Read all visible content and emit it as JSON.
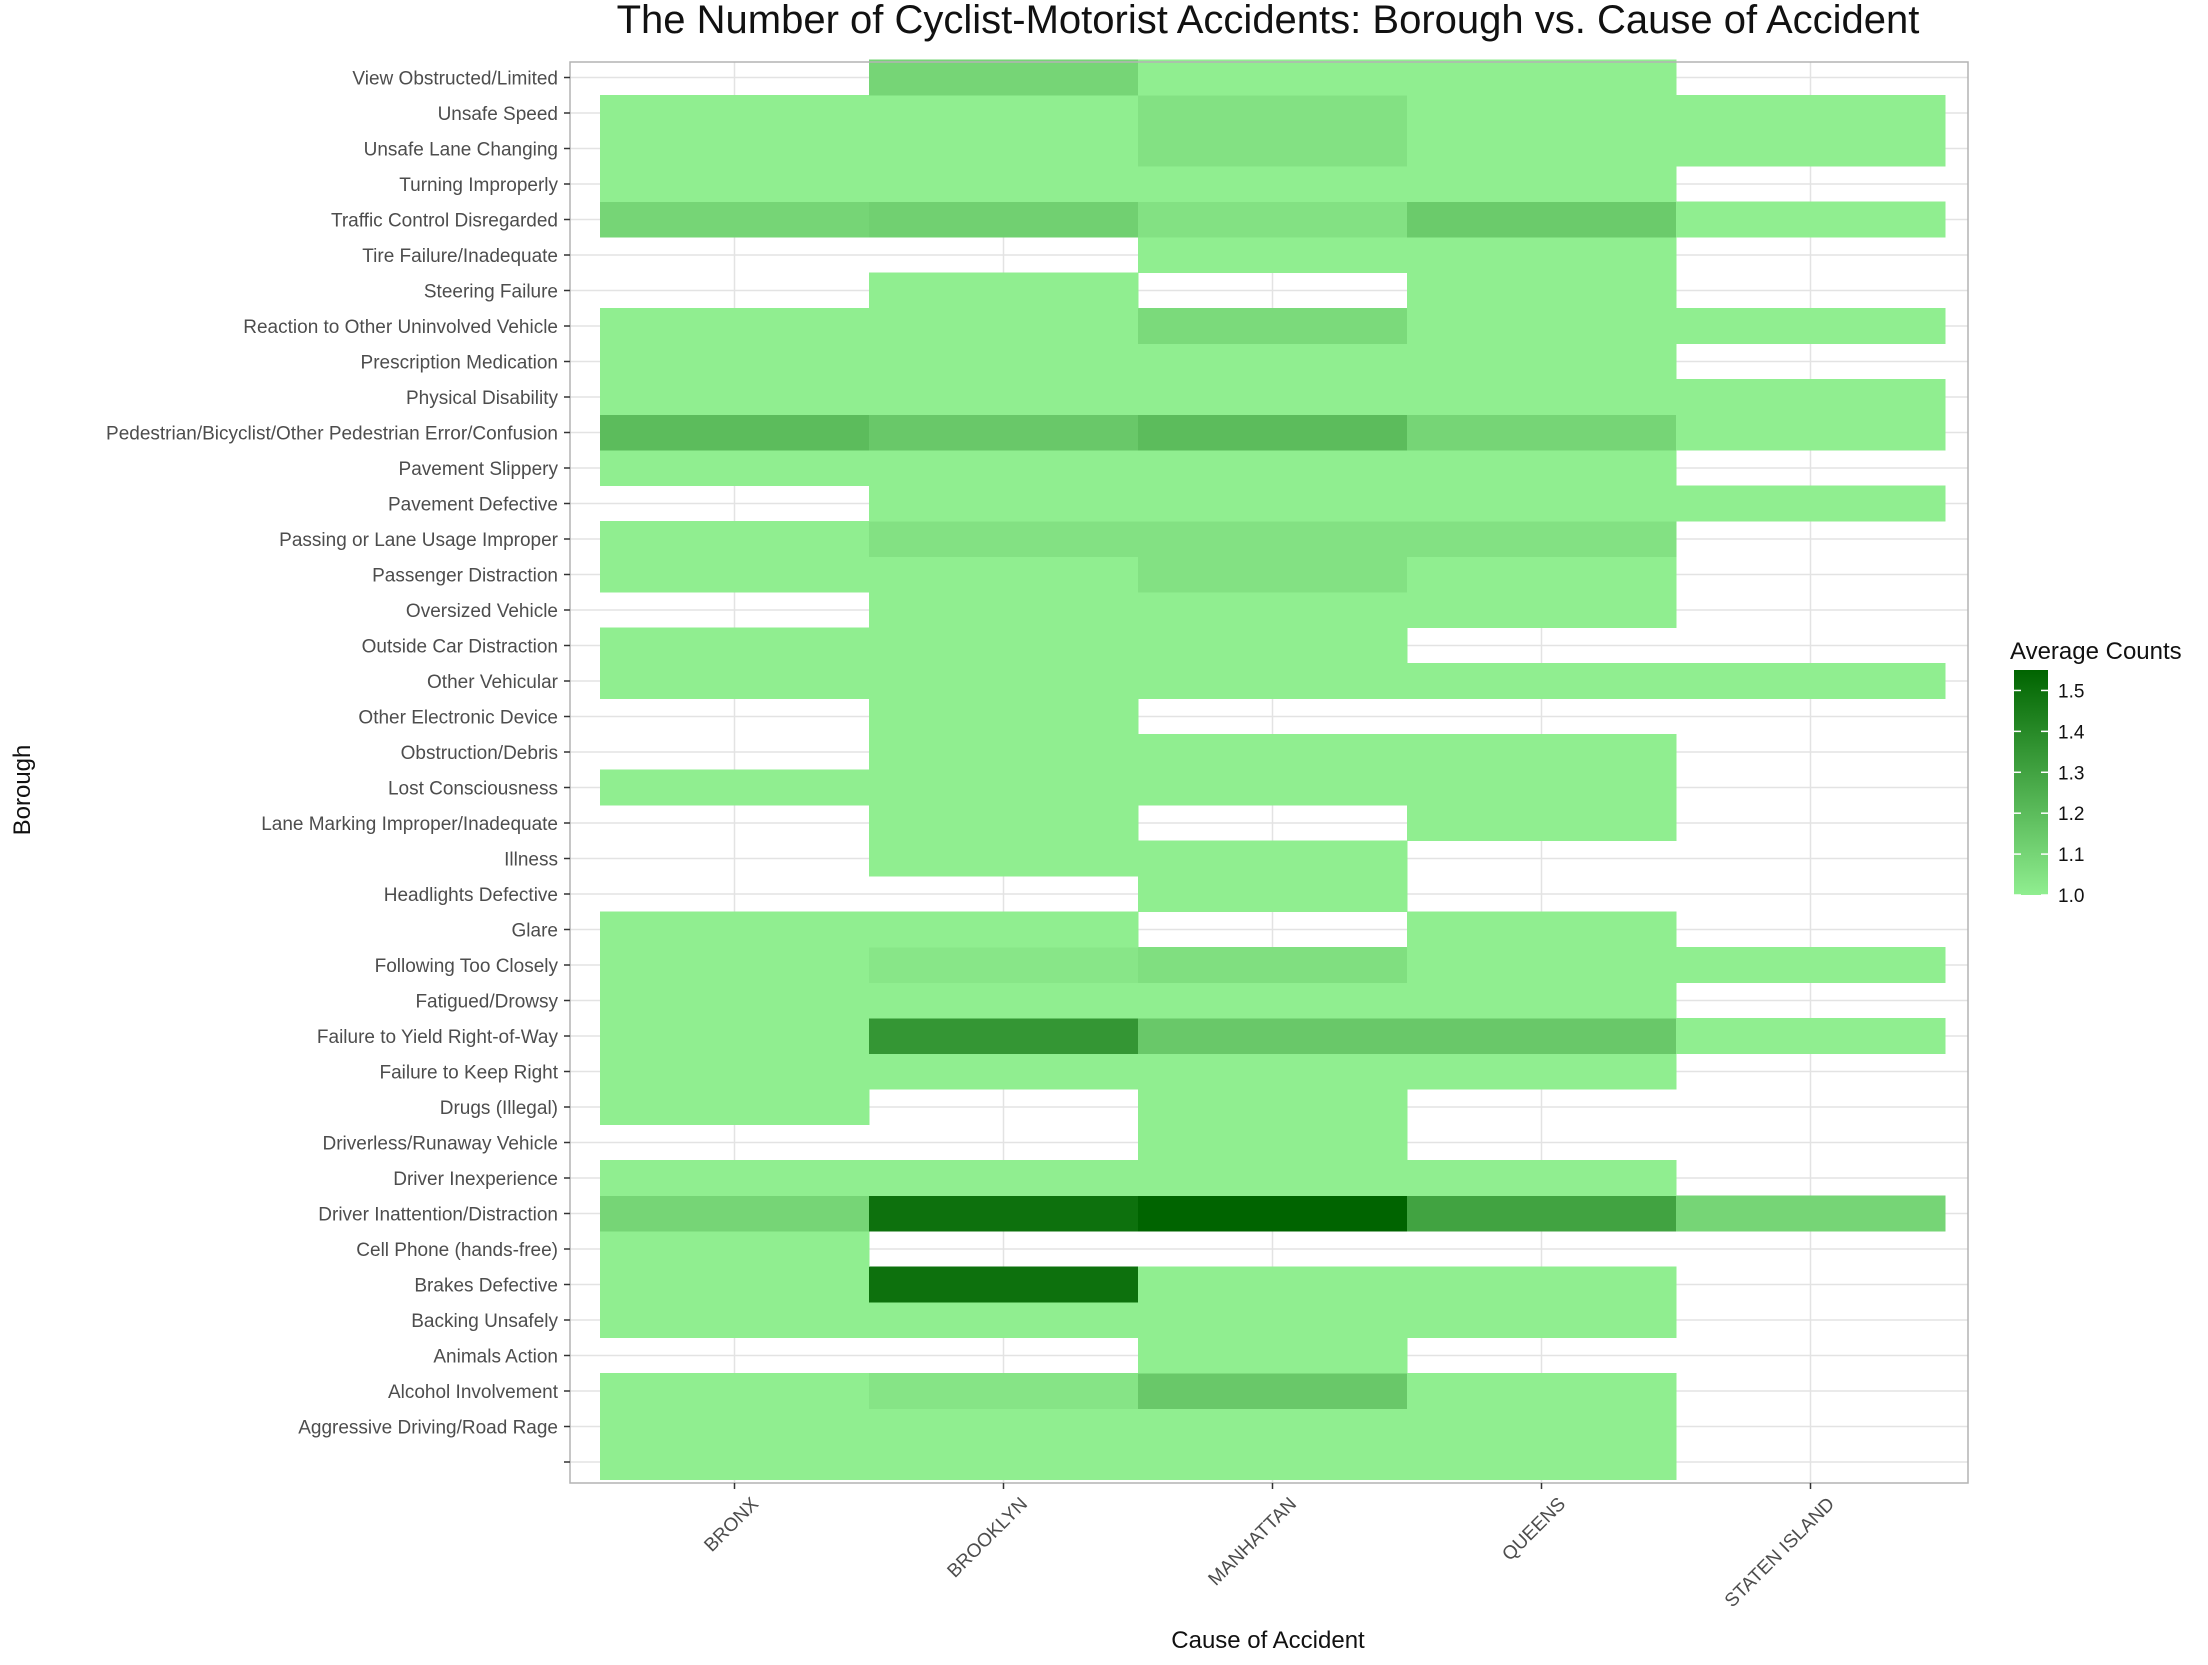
{
  "chart_data": {
    "type": "heatmap",
    "title": "The Number of Cyclist-Motorist Accidents: Borough vs. Cause of Accident",
    "xlabel": "Cause of Accident",
    "ylabel": "Borough",
    "x_categories": [
      "BRONX",
      "BROOKLYN",
      "MANHATTAN",
      "QUEENS",
      "STATEN ISLAND"
    ],
    "y_categories": [
      "",
      "Aggressive Driving/Road Rage",
      "Alcohol Involvement",
      "Animals Action",
      "Backing Unsafely",
      "Brakes Defective",
      "Cell Phone (hands-free)",
      "Driver Inattention/Distraction",
      "Driver Inexperience",
      "Driverless/Runaway Vehicle",
      "Drugs (Illegal)",
      "Failure to Keep Right",
      "Failure to Yield Right-of-Way",
      "Fatigued/Drowsy",
      "Following Too Closely",
      "Glare",
      "Headlights Defective",
      "Illness",
      "Lane Marking Improper/Inadequate",
      "Lost Consciousness",
      "Obstruction/Debris",
      "Other Electronic Device",
      "Other Vehicular",
      "Outside Car Distraction",
      "Oversized Vehicle",
      "Passenger Distraction",
      "Passing or Lane Usage Improper",
      "Pavement Defective",
      "Pavement Slippery",
      "Pedestrian/Bicyclist/Other Pedestrian Error/Confusion",
      "Physical Disability",
      "Prescription Medication",
      "Reaction to Other Uninvolved Vehicle",
      "Steering Failure",
      "Tire Failure/Inadequate",
      "Traffic Control Disregarded",
      "Turning Improperly",
      "Unsafe Lane Changing",
      "Unsafe Speed",
      "View Obstructed/Limited"
    ],
    "values": [
      [
        1.0,
        1.0,
        1.0,
        1.0,
        null
      ],
      [
        1.0,
        1.0,
        1.0,
        1.0,
        null
      ],
      [
        1.0,
        1.04,
        1.15,
        1.0,
        null
      ],
      [
        null,
        null,
        1.0,
        null,
        null
      ],
      [
        1.0,
        1.0,
        1.0,
        1.0,
        null
      ],
      [
        1.0,
        1.5,
        1.0,
        1.0,
        null
      ],
      [
        1.0,
        null,
        null,
        null,
        null
      ],
      [
        1.1,
        1.5,
        1.55,
        1.3,
        1.1
      ],
      [
        1.0,
        1.0,
        1.0,
        1.0,
        null
      ],
      [
        null,
        null,
        1.0,
        null,
        null
      ],
      [
        1.0,
        null,
        1.0,
        null,
        null
      ],
      [
        1.0,
        1.0,
        1.0,
        1.0,
        null
      ],
      [
        1.0,
        1.35,
        1.15,
        1.15,
        1.0
      ],
      [
        1.0,
        1.0,
        1.0,
        1.0,
        null
      ],
      [
        1.0,
        1.03,
        1.06,
        1.0,
        1.0
      ],
      [
        1.0,
        1.0,
        null,
        1.0,
        null
      ],
      [
        null,
        null,
        1.0,
        null,
        null
      ],
      [
        null,
        1.0,
        1.0,
        null,
        null
      ],
      [
        null,
        1.0,
        null,
        1.0,
        null
      ],
      [
        1.0,
        1.0,
        1.0,
        1.0,
        null
      ],
      [
        null,
        1.0,
        1.0,
        1.0,
        null
      ],
      [
        null,
        1.0,
        null,
        null,
        null
      ],
      [
        1.0,
        1.0,
        1.0,
        1.0,
        1.0
      ],
      [
        1.0,
        1.0,
        1.0,
        null,
        null
      ],
      [
        null,
        1.0,
        1.0,
        1.0,
        null
      ],
      [
        1.0,
        1.0,
        1.05,
        1.0,
        null
      ],
      [
        1.0,
        1.05,
        1.05,
        1.05,
        null
      ],
      [
        null,
        1.0,
        1.0,
        1.0,
        1.0
      ],
      [
        1.0,
        1.0,
        1.0,
        1.0,
        null
      ],
      [
        1.2,
        1.15,
        1.2,
        1.1,
        1.0
      ],
      [
        1.0,
        1.0,
        1.0,
        1.0,
        1.0
      ],
      [
        1.0,
        1.0,
        1.0,
        1.0,
        null
      ],
      [
        1.0,
        1.0,
        1.08,
        1.0,
        1.0
      ],
      [
        null,
        1.0,
        null,
        1.0,
        null
      ],
      [
        null,
        null,
        1.0,
        1.0,
        null
      ],
      [
        1.1,
        1.12,
        1.05,
        1.14,
        1.0
      ],
      [
        1.0,
        1.0,
        1.0,
        1.0,
        null
      ],
      [
        1.0,
        1.0,
        1.05,
        1.0,
        1.0
      ],
      [
        1.0,
        1.0,
        1.05,
        1.0,
        1.0
      ],
      [
        null,
        1.1,
        1.0,
        1.0,
        null
      ]
    ],
    "legend": {
      "title": "Average Counts",
      "position": "right",
      "ticks": [
        "1.0",
        "1.1",
        "1.2",
        "1.3",
        "1.4",
        "1.5"
      ],
      "range": [
        1.0,
        1.55
      ],
      "color_low": "#90EE90",
      "color_high": "#006400"
    },
    "grid": true
  }
}
